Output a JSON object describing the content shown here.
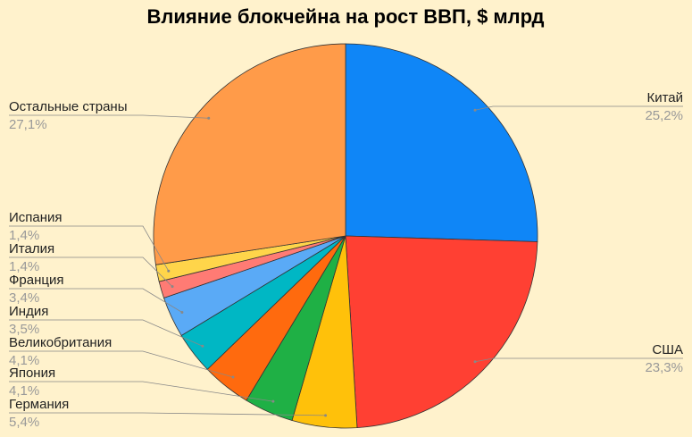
{
  "chart_data": {
    "type": "pie",
    "title": "Влияние блокчейна на рост ВВП, $ млрд",
    "categories": [
      "Китай",
      "США",
      "Германия",
      "Япония",
      "Великобритания",
      "Индия",
      "Франция",
      "Италия",
      "Испания",
      "Остальные страны"
    ],
    "values": [
      25.2,
      23.3,
      5.4,
      4.1,
      4.1,
      3.5,
      3.4,
      1.4,
      1.4,
      27.1
    ],
    "value_labels": [
      "25,2%",
      "23,3%",
      "5,4%",
      "4,1%",
      "4,1%",
      "3,5%",
      "3,4%",
      "1,4%",
      "1,4%",
      "27,1%"
    ],
    "colors": [
      "#0f86f7",
      "#ff4033",
      "#ffc10a",
      "#1fb045",
      "#ff6a0e",
      "#00b7c4",
      "#5aaaf6",
      "#ff7b74",
      "#ffd54a",
      "#ff9b49"
    ]
  }
}
